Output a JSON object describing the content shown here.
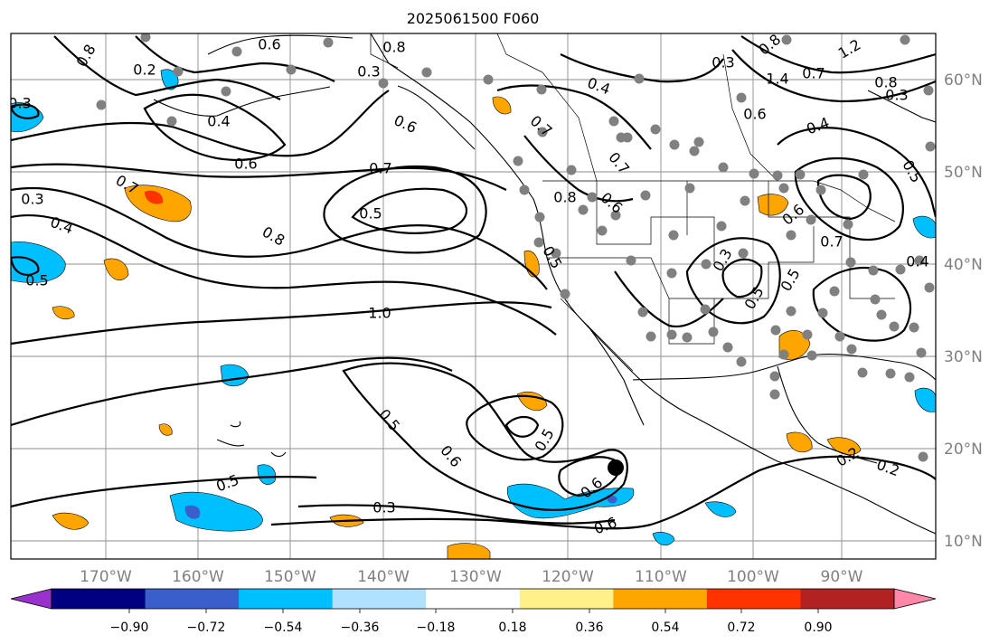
{
  "title": "2025061500 F060",
  "map": {
    "projection": "Plate Carree",
    "lon_ticks": [
      "170°W",
      "160°W",
      "150°W",
      "140°W",
      "130°W",
      "120°W",
      "110°W",
      "100°W",
      "90°W"
    ],
    "lat_ticks": [
      "60°N",
      "50°N",
      "40°N",
      "30°N",
      "20°N",
      "10°N"
    ],
    "gridlines": true,
    "station_marker_color": "#808080",
    "contour_color": "#000000",
    "contour_labels": [
      "0.8",
      "0.6",
      "0.8",
      "0.3",
      "0.4",
      "0.5",
      "0.7",
      "0.4",
      "0.6",
      "0.6",
      "0.7",
      "0.5",
      "0.8",
      "0.4",
      "0.7",
      "0.6",
      "0.8",
      "0.7",
      "0.6",
      "0.3",
      "0.4",
      "0.3",
      "0.8",
      "0.3",
      "1.2",
      "1.4",
      "0.7",
      "0.8",
      "0.6",
      "0.7",
      "0.5",
      "0.5",
      "0.3",
      "0.5",
      "0.4",
      "0.5",
      "1.0",
      "0.5",
      "0.6",
      "0.5",
      "0.6",
      "0.5",
      "0.3",
      "0.6",
      "0.2",
      "0.2",
      "0.3",
      "0.2"
    ]
  },
  "colorbar": {
    "tick_labels": [
      "−0.90",
      "−0.72",
      "−0.54",
      "−0.36",
      "−0.18",
      "0.18",
      "0.36",
      "0.54",
      "0.72",
      "0.90"
    ],
    "colors": [
      "#9932cc",
      "#000080",
      "#3a5fcd",
      "#00bfff",
      "#b0e2ff",
      "#ffffff",
      "#fff08a",
      "#ffa500",
      "#ff3300",
      "#b22222",
      "#ff88aa"
    ],
    "extend": "both"
  }
}
